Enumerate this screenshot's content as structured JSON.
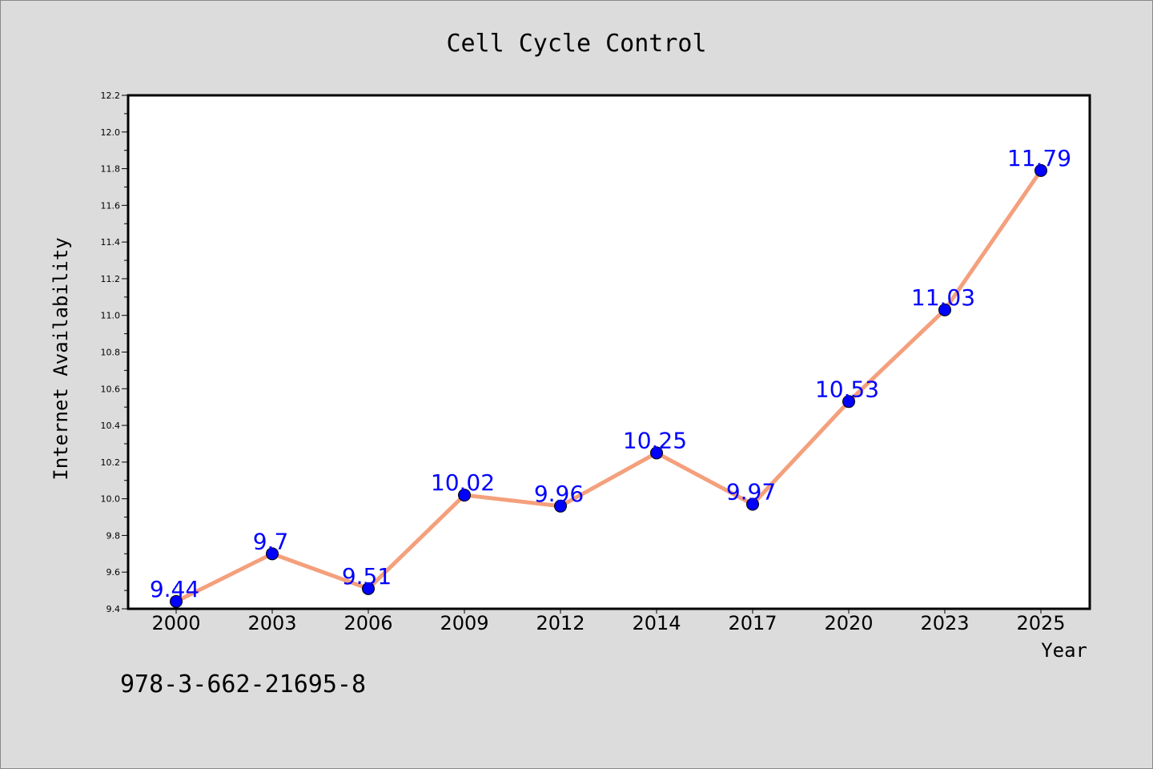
{
  "chart_data": {
    "type": "line",
    "title": "Cell Cycle Control",
    "xlabel": "Year",
    "ylabel": "Internet Availability",
    "categories": [
      "2000",
      "2003",
      "2006",
      "2009",
      "2012",
      "2014",
      "2017",
      "2020",
      "2023",
      "2025"
    ],
    "series": [
      {
        "values": [
          9.44,
          9.7,
          9.51,
          10.02,
          9.96,
          10.25,
          9.97,
          10.53,
          11.03,
          11.79
        ]
      }
    ],
    "data_labels": [
      "9.44",
      "9.7",
      "9.51",
      "10.02",
      "9.96",
      "10.25",
      "9.97",
      "10.53",
      "11.03",
      "11.79"
    ],
    "ylim": [
      9.4,
      12.2
    ],
    "yticks": [
      "9.4",
      "9.6",
      "9.8",
      "10.0",
      "10.2",
      "10.4",
      "10.6",
      "10.8",
      "11.0",
      "11.2",
      "11.4",
      "11.6",
      "11.8",
      "12.0",
      "12.2"
    ],
    "grid": false,
    "line_color": "#f4a07c",
    "marker_color": "#0000ff",
    "label_color": "#0000ff"
  },
  "footer_text": "978-3-662-21695-8"
}
